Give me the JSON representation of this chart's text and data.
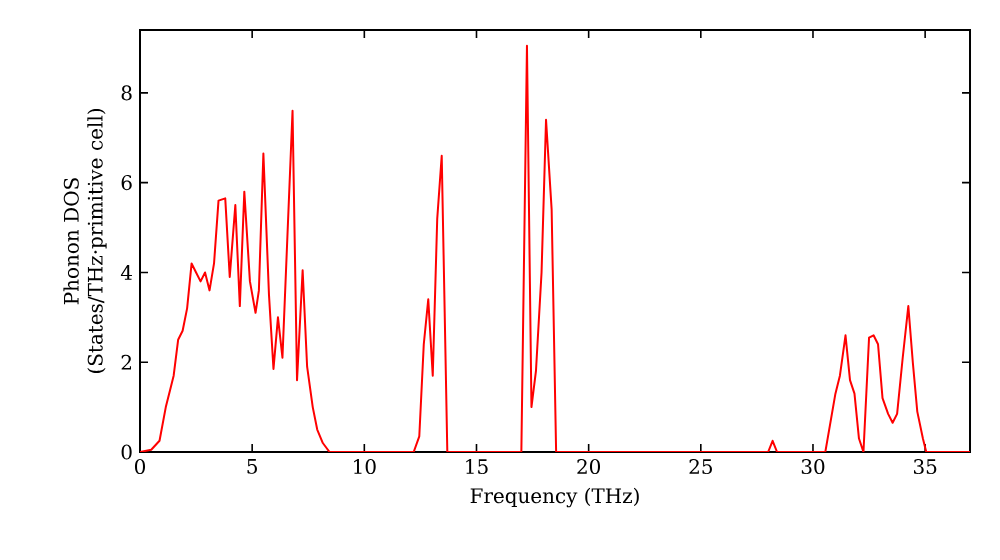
{
  "chart_data": {
    "type": "line",
    "xlabel": "Frequency (THz)",
    "ylabel": "Phonon DOS (States/THz·primitive cell)",
    "xlim": [
      0,
      37
    ],
    "ylim": [
      0,
      9.4
    ],
    "xticks": [
      0,
      5,
      10,
      15,
      20,
      25,
      30,
      35
    ],
    "yticks": [
      0,
      2,
      4,
      6,
      8
    ],
    "grid": false,
    "marker": "none",
    "line_style": "solid",
    "series": [
      {
        "color": "#ff0000",
        "x": [
          0,
          0.5,
          0.87,
          1.15,
          1.35,
          1.5,
          1.7,
          1.9,
          2.1,
          2.3,
          2.5,
          2.7,
          2.9,
          3.1,
          3.3,
          3.5,
          3.8,
          4.0,
          4.25,
          4.45,
          4.65,
          4.9,
          5.15,
          5.3,
          5.5,
          5.75,
          5.95,
          6.15,
          6.35,
          6.8,
          7.0,
          7.25,
          7.45,
          7.7,
          7.9,
          8.15,
          8.45,
          12.2,
          12.45,
          12.65,
          12.85,
          13.05,
          13.25,
          13.45,
          13.7,
          17.0,
          17.25,
          17.45,
          17.65,
          17.9,
          18.1,
          18.35,
          18.55,
          28.0,
          28.2,
          28.4,
          30.55,
          31.0,
          31.2,
          31.45,
          31.65,
          31.85,
          32.05,
          32.25,
          32.5,
          32.7,
          32.9,
          33.1,
          33.35,
          33.55,
          33.75,
          34.0,
          34.25,
          34.45,
          34.65,
          34.9,
          35.05,
          37
        ],
        "values": [
          0,
          0.05,
          0.25,
          1.0,
          1.4,
          1.7,
          2.5,
          2.7,
          3.2,
          4.2,
          4.0,
          3.8,
          4.0,
          3.6,
          4.2,
          5.6,
          5.65,
          3.9,
          5.5,
          3.25,
          5.8,
          3.8,
          3.1,
          3.6,
          6.65,
          3.5,
          1.85,
          3.0,
          2.1,
          7.6,
          1.6,
          4.05,
          1.9,
          1.0,
          0.5,
          0.2,
          0,
          0,
          0.35,
          2.4,
          3.4,
          1.7,
          5.2,
          6.6,
          0,
          0,
          9.05,
          1.0,
          1.8,
          4.0,
          7.4,
          5.4,
          0,
          0,
          0.25,
          0,
          0,
          1.3,
          1.7,
          2.6,
          1.6,
          1.3,
          0.3,
          0,
          2.55,
          2.6,
          2.4,
          1.2,
          0.85,
          0.65,
          0.85,
          2.1,
          3.25,
          2.0,
          0.9,
          0.3,
          0,
          0
        ]
      }
    ]
  }
}
